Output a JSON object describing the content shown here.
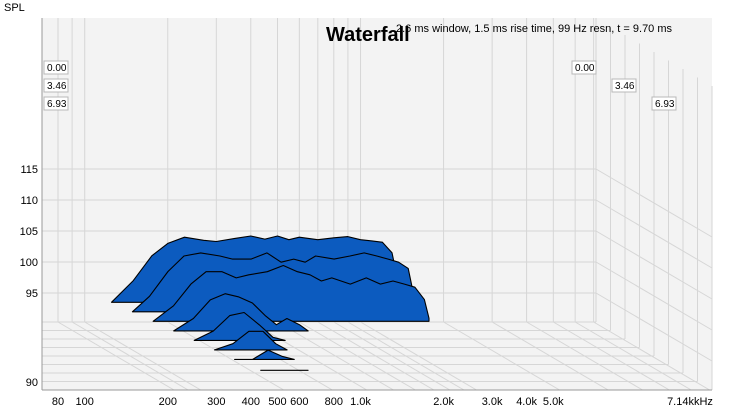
{
  "chart_data": {
    "type": "waterfall",
    "title": "Waterfall",
    "info": "2.6 ms window, 1.5 ms rise time,  99 Hz resn, t = 9.70 ms",
    "ylabel": "SPL",
    "xunit": "kHz",
    "y_ticks": [
      "115",
      "110",
      "105",
      "100",
      "95",
      "90"
    ],
    "x_ticks": [
      "80",
      "100",
      "200",
      "300",
      "400",
      "500",
      "600",
      "800",
      "1.0k",
      "2.0k",
      "3.0k",
      "4.0k",
      "5.0k",
      "7.14k"
    ],
    "time_labels": [
      "0.00",
      "3.46",
      "6.93"
    ],
    "ylim": [
      90,
      118
    ],
    "xlim_hz": [
      70,
      7140
    ],
    "colors": {
      "fill": "#0c5bbf",
      "stroke": "#000000",
      "grid": "#d6d6d6",
      "wall": "#f3f3f3"
    },
    "slices": [
      {
        "t_ms": 0.0,
        "freq_hz": [
          125,
          150,
          175,
          200,
          230,
          270,
          300,
          350,
          400,
          450,
          500,
          550,
          600,
          700,
          800,
          900,
          1000,
          1100,
          1200,
          1300,
          1350,
          1420
        ],
        "spl_db": [
          93,
          97,
          101,
          103,
          104,
          103.5,
          103.3,
          103.8,
          104.2,
          103.7,
          104.2,
          103.6,
          104,
          103.6,
          103.9,
          104.1,
          103.6,
          103.4,
          103.2,
          101.5,
          98,
          94
        ]
      },
      {
        "t_ms": 0.97,
        "freq_hz": [
          130,
          150,
          175,
          200,
          230,
          270,
          300,
          350,
          400,
          450,
          500,
          550,
          600,
          700,
          800,
          900,
          1000,
          1100,
          1200,
          1300,
          1350,
          1420
        ],
        "spl_db": [
          93,
          96,
          100,
          102.5,
          103,
          102.5,
          102,
          102,
          103,
          101.5,
          102,
          101.5,
          102.5,
          102,
          102.5,
          103,
          102.5,
          102,
          101.5,
          100.5,
          97,
          94
        ]
      },
      {
        "t_ms": 1.94,
        "freq_hz": [
          135,
          160,
          185,
          210,
          240,
          270,
          300,
          350,
          400,
          450,
          500,
          550,
          600,
          700,
          800,
          900,
          1000,
          1100,
          1200,
          1300,
          1350
        ],
        "spl_db": [
          92.5,
          96,
          99.5,
          101.5,
          101.5,
          100.5,
          101,
          101.5,
          102.5,
          101.5,
          101,
          100,
          100.5,
          99.5,
          100.5,
          99.5,
          100,
          99.5,
          99,
          97,
          94
        ]
      },
      {
        "t_ms": 2.91,
        "freq_hz": [
          140,
          165,
          190,
          215,
          240,
          270,
          300,
          330,
          360,
          400,
          430
        ],
        "spl_db": [
          92.5,
          95.5,
          98.5,
          99.5,
          99,
          98,
          96,
          94.5,
          95.5,
          94.5,
          92.5
        ]
      },
      {
        "t_ms": 3.88,
        "freq_hz": [
          145,
          170,
          195,
          220,
          250,
          280,
          310
        ],
        "spl_db": [
          92,
          95,
          97.5,
          98,
          96,
          94,
          92
        ]
      },
      {
        "t_ms": 4.85,
        "freq_hz": [
          150,
          175,
          200,
          225,
          250,
          275
        ],
        "spl_db": [
          92,
          94.5,
          96.5,
          96.5,
          94.5,
          92
        ]
      },
      {
        "t_ms": 5.82,
        "freq_hz": [
          155,
          180,
          205,
          230,
          255
        ],
        "spl_db": [
          91.5,
          93.5,
          95,
          94,
          91.5
        ]
      },
      {
        "t_ms": 6.93,
        "freq_hz": [
          165,
          190,
          210,
          230,
          245
        ],
        "spl_db": [
          91,
          92.5,
          93.5,
          92.5,
          91
        ]
      }
    ]
  }
}
